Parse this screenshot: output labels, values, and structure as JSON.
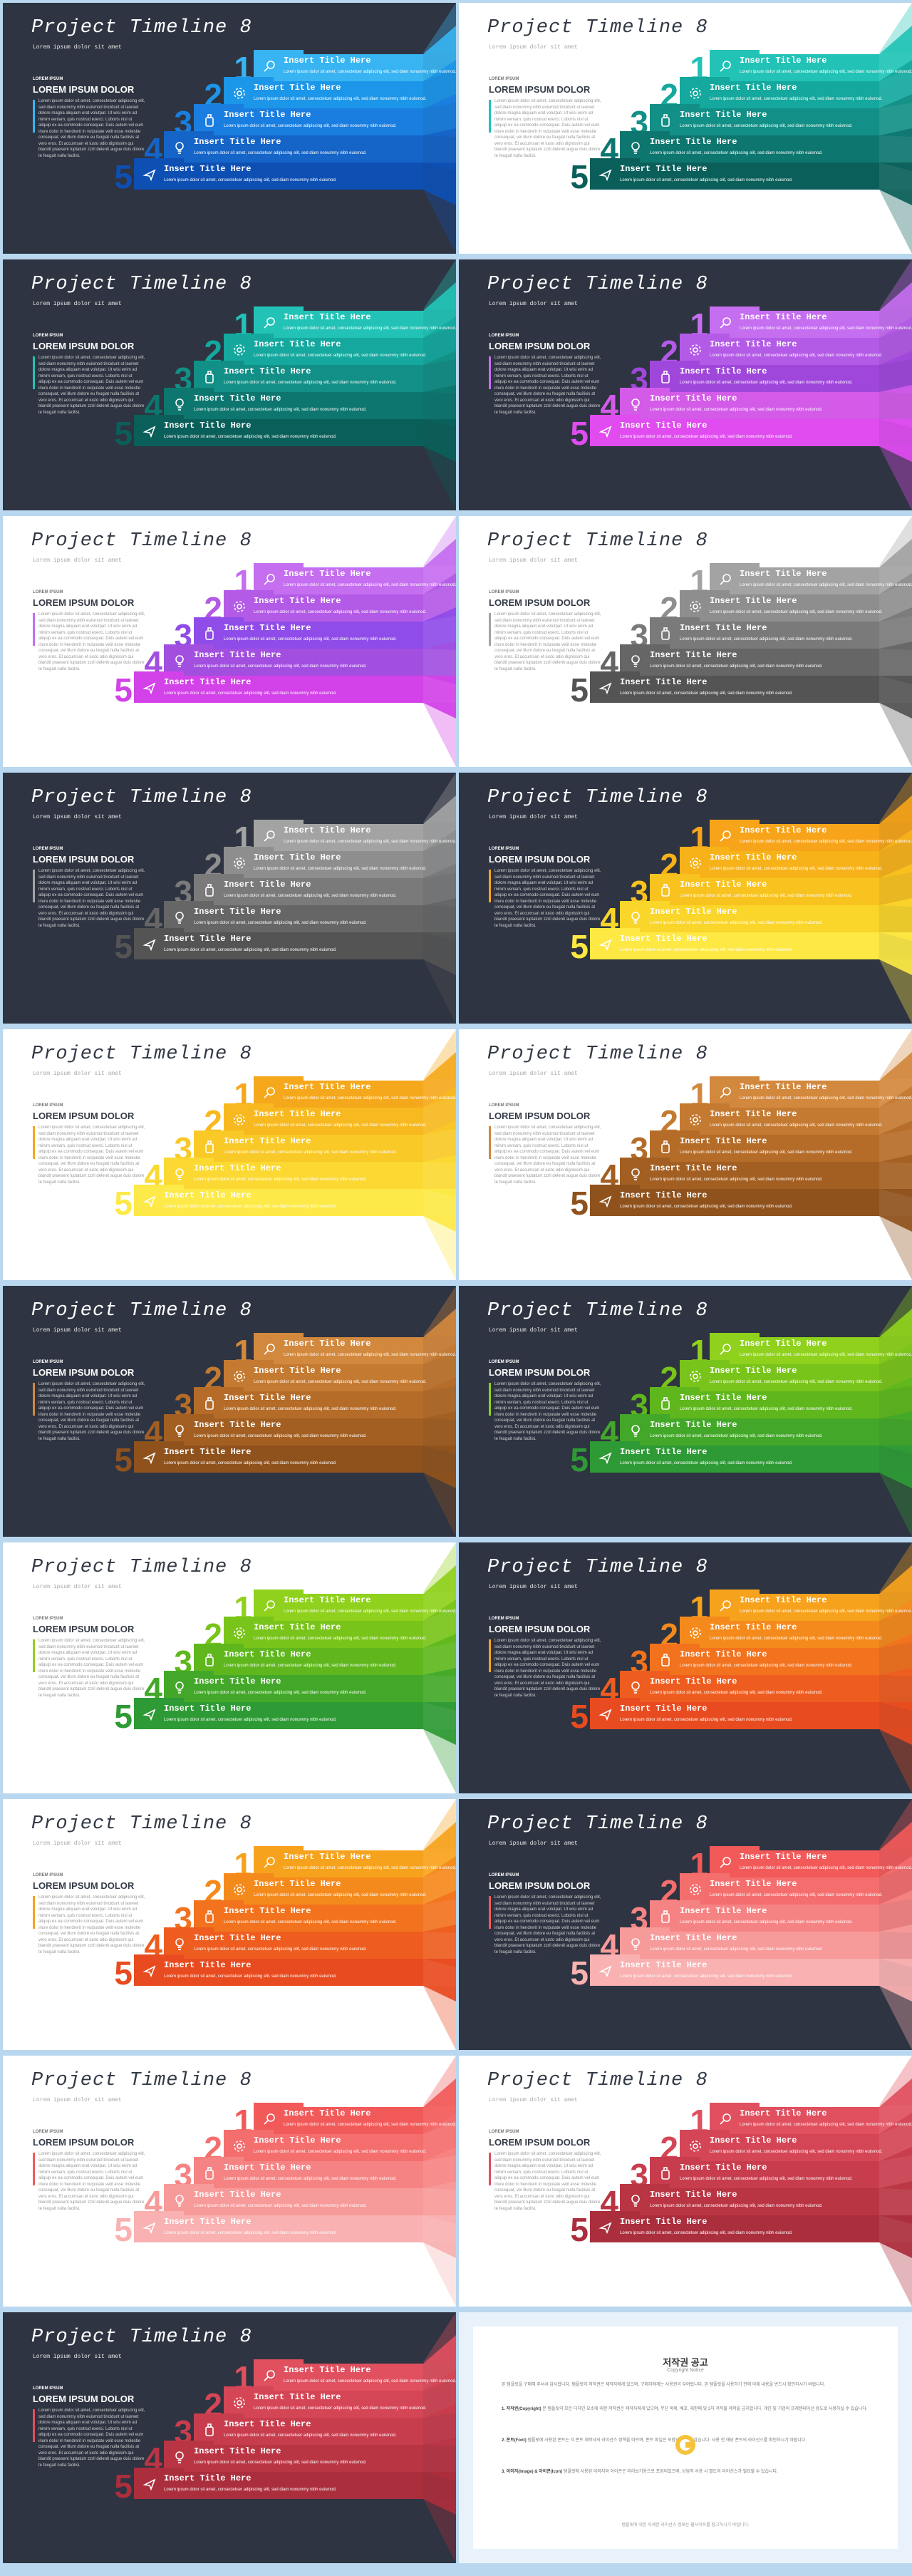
{
  "slide_text": {
    "title": "Project Timeline 8",
    "subtitle": "Lorem ipsum dolor sit amet",
    "small_label": "LOREM IPSUM",
    "big_label": "LOREM IPSUM DOLOR",
    "paragraph": "Lorem ipsum dolor sit amet, consectetuer adipiscing elit, sed diam nonummy nibh euismod tincidunt ut laoreet dolore magna aliquam erat volutpat. Ut wisi enim ad minim veniam, quis nostrud exerci. Loborts nisl ut aliquip ex ea commodo consequat. Duis autem vel eum iriure dolor in hendrerit in vulputate velit esse molestie consequat, vel illum dolore eu feugiat nulla facilisis at vero eros. Et accumsan et iusto odio dignissim qui blandit praesent luptatum zzril delenit augue duis dolore te feugait nulla facilisi.",
    "band_title": "Insert Title Here",
    "band_desc": "Lorem ipsum dolor sit amet, consectetuer adipiscing elit, sed diam nonummy nibh euismod.",
    "numbers": [
      "1",
      "2",
      "3",
      "4",
      "5"
    ]
  },
  "slides": [
    {
      "theme": "dark",
      "colors": [
        "#38b4f2",
        "#1c96e8",
        "#1a7ee0",
        "#1564c7",
        "#0e4fb3"
      ]
    },
    {
      "theme": "light",
      "colors": [
        "#22c3b6",
        "#14a89e",
        "#128f86",
        "#0d766f",
        "#0b5f5a"
      ]
    },
    {
      "theme": "dark",
      "colors": [
        "#22c3b6",
        "#14a89e",
        "#128f86",
        "#0d766f",
        "#0b5f5a"
      ]
    },
    {
      "theme": "dark",
      "colors": [
        "#c56ef0",
        "#b35ae6",
        "#a047db",
        "#d35be8",
        "#e04cf0"
      ]
    },
    {
      "theme": "light",
      "colors": [
        "#c56ef0",
        "#b35ae6",
        "#8f4ce8",
        "#a24fe0",
        "#d341e8"
      ]
    },
    {
      "theme": "light",
      "colors": [
        "#a3a3a3",
        "#8e8e8e",
        "#7a7a7a",
        "#666666",
        "#545454"
      ]
    },
    {
      "theme": "dark",
      "colors": [
        "#a3a3a3",
        "#8e8e8e",
        "#7a7a7a",
        "#666666",
        "#545454"
      ]
    },
    {
      "theme": "dark",
      "colors": [
        "#f7a41a",
        "#f7b21a",
        "#f8c21f",
        "#fad52a",
        "#fde844"
      ]
    },
    {
      "theme": "light",
      "colors": [
        "#f5a81c",
        "#f7b91f",
        "#f9c927",
        "#fbd932",
        "#fde947"
      ]
    },
    {
      "theme": "light",
      "colors": [
        "#d2883d",
        "#c47a31",
        "#b56c28",
        "#a35f22",
        "#8f521d"
      ]
    },
    {
      "theme": "dark",
      "colors": [
        "#d2883d",
        "#c47a31",
        "#b56c28",
        "#a35f22",
        "#8f521d"
      ]
    },
    {
      "theme": "dark",
      "colors": [
        "#8fd11c",
        "#79c41a",
        "#5fb71d",
        "#43a829",
        "#2e9a35"
      ]
    },
    {
      "theme": "light",
      "colors": [
        "#8fd11c",
        "#79c41a",
        "#5fb71d",
        "#43a829",
        "#2e9a35"
      ]
    },
    {
      "theme": "dark",
      "colors": [
        "#f7a21c",
        "#f58a1c",
        "#f2721e",
        "#ee5d1f",
        "#e84b1f"
      ]
    },
    {
      "theme": "light",
      "colors": [
        "#f7a21c",
        "#f58a1c",
        "#f2721e",
        "#ee5d1f",
        "#e84b1f"
      ]
    },
    {
      "theme": "dark",
      "colors": [
        "#f25a5a",
        "#f46e6e",
        "#f68383",
        "#f79a9a",
        "#f9b1b1"
      ]
    },
    {
      "theme": "light",
      "colors": [
        "#f25a5a",
        "#f46e6e",
        "#f68383",
        "#f79a9a",
        "#f9b1b1"
      ]
    },
    {
      "theme": "light",
      "colors": [
        "#e0505f",
        "#d44656",
        "#c83d4d",
        "#ba3544",
        "#ab2e3d"
      ]
    },
    {
      "theme": "dark",
      "colors": [
        "#e0505f",
        "#d44656",
        "#c83d4d",
        "#ba3544",
        "#ab2e3d"
      ]
    }
  ],
  "notice": {
    "title": "저작권 공고",
    "subtitle": "Copyright Notice",
    "intro": "본 템플릿을 구매해 주셔서 감사합니다. 템플릿의 저작권은 제작자에게 있으며, 구매자에게는 사용권이 부여됩니다. 본 템플릿을 사용하기 전에 아래 내용을 반드시 확인하시기 바랍니다.",
    "sections": [
      {
        "head": "1. 저작권(Copyright)",
        "text": "본 템플릿의 모든 디자인 요소에 대한 저작권은 제작자에게 있으며, 무단 복제, 배포, 재판매 및 2차 저작물 제작을 금지합니다. 개인 및 기업의 프레젠테이션 용도로 사용하실 수 있습니다."
      },
      {
        "head": "2. 폰트(Font)",
        "text": "템플릿에 사용된 폰트는 각 폰트 제작사의 라이선스 정책을 따르며, 폰트 파일은 포함되어 있지 않습니다. 사용 전 해당 폰트의 라이선스를 확인하시기 바랍니다."
      },
      {
        "head": "3. 이미지(Image) & 아이콘(Icon)",
        "text": "템플릿에 사용된 이미지와 아이콘은 미리보기용으로 포함되었으며, 상업적 사용 시 별도의 라이선스가 필요할 수 있습니다."
      }
    ],
    "footer": "템플릿에 대한 자세한 라이선스 정보는 웹사이트를 참고하시기 바랍니다."
  }
}
